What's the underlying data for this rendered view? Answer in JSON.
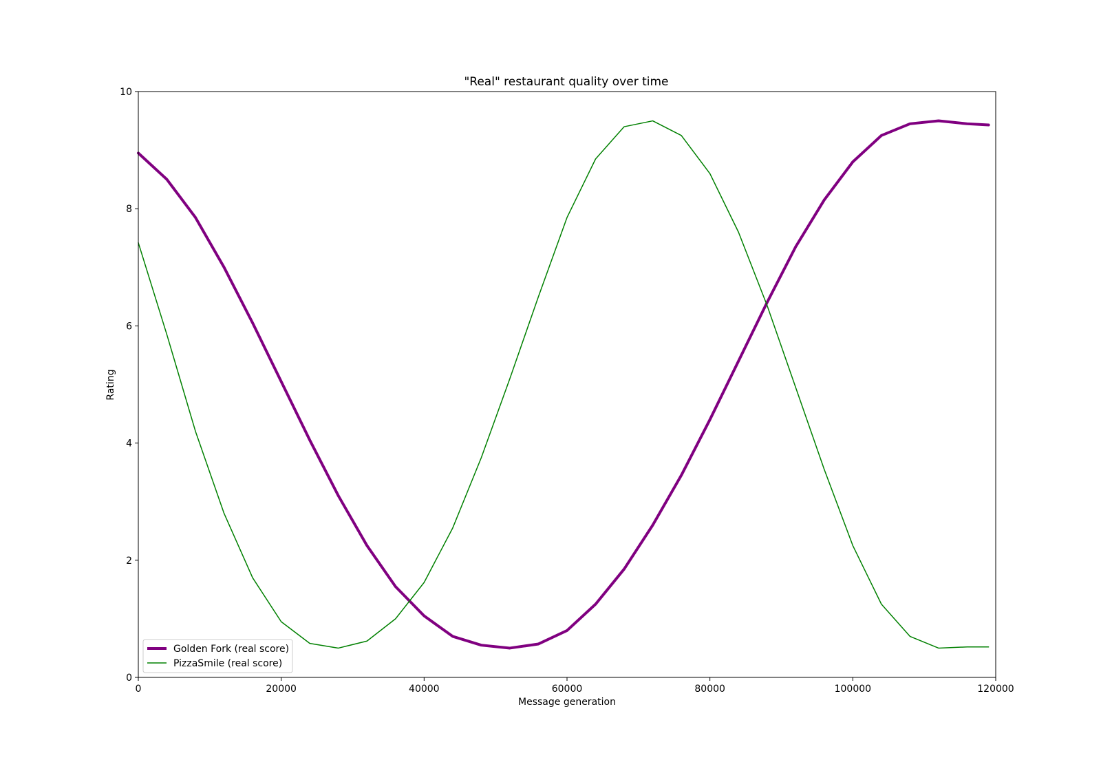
{
  "chart_data": {
    "type": "line",
    "title": "\"Real\" restaurant quality over time",
    "xlabel": "Message generation",
    "ylabel": "Rating",
    "xlim": [
      0,
      120000
    ],
    "ylim": [
      0,
      10
    ],
    "x_ticks": [
      0,
      20000,
      40000,
      60000,
      80000,
      100000,
      120000
    ],
    "x_tick_labels": [
      "0",
      "20000",
      "40000",
      "60000",
      "80000",
      "100000",
      "120000"
    ],
    "y_ticks": [
      0,
      2,
      4,
      6,
      8,
      10
    ],
    "y_tick_labels": [
      "0",
      "2",
      "4",
      "6",
      "8",
      "10"
    ],
    "grid": false,
    "legend_position": "lower-left",
    "x": [
      0,
      4000,
      8000,
      12000,
      16000,
      20000,
      24000,
      28000,
      32000,
      36000,
      40000,
      44000,
      48000,
      52000,
      56000,
      60000,
      64000,
      68000,
      72000,
      76000,
      80000,
      84000,
      88000,
      92000,
      96000,
      100000,
      104000,
      108000,
      112000,
      116000,
      119000
    ],
    "series": [
      {
        "name": "Golden Fork (real score)",
        "color": "#800080",
        "line_style": "thick",
        "values": [
          8.95,
          8.5,
          7.85,
          7.0,
          6.05,
          5.05,
          4.05,
          3.1,
          2.25,
          1.55,
          1.05,
          0.7,
          0.55,
          0.5,
          0.57,
          0.8,
          1.25,
          1.85,
          2.6,
          3.45,
          4.4,
          5.4,
          6.4,
          7.35,
          8.15,
          8.8,
          9.25,
          9.45,
          9.5,
          9.45,
          9.43
        ]
      },
      {
        "name": "PizzaSmile (real score)",
        "color": "#008000",
        "line_style": "thin",
        "values": [
          7.42,
          5.85,
          4.2,
          2.8,
          1.7,
          0.95,
          0.58,
          0.5,
          0.62,
          1.0,
          1.62,
          2.55,
          3.75,
          5.1,
          6.5,
          7.85,
          8.85,
          9.4,
          9.5,
          9.25,
          8.6,
          7.6,
          6.35,
          4.95,
          3.55,
          2.25,
          1.25,
          0.7,
          0.5,
          0.52,
          0.52
        ]
      }
    ]
  }
}
